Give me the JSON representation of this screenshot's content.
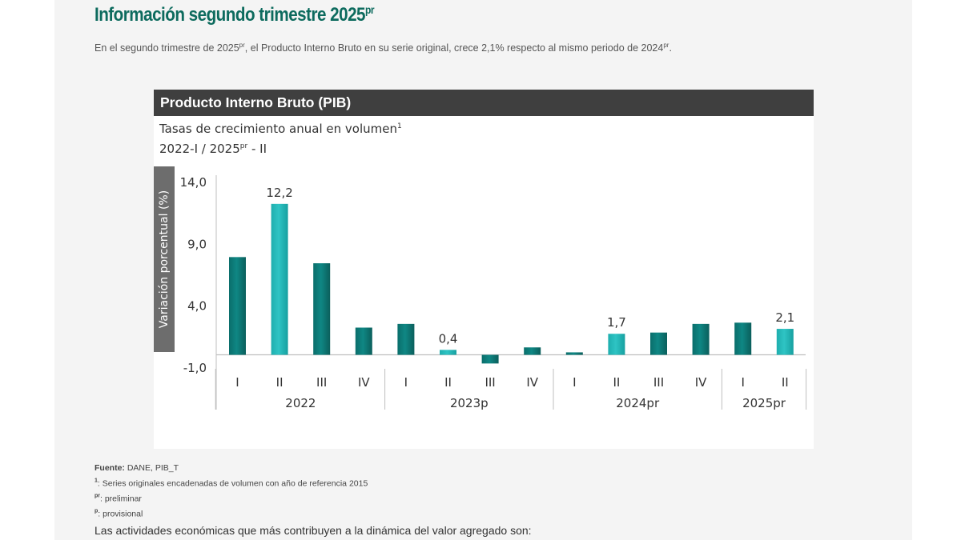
{
  "page": {
    "title": "Información segundo trimestre 2025",
    "title_sup": "pr",
    "intro": {
      "part1": "En el segundo trimestre de 2025",
      "sup1": "pr",
      "part2": ", el Producto Interno Bruto en su serie original, crece 2,1% respecto al mismo periodo de 2024",
      "sup2": "pr",
      "part3": "."
    },
    "bottom_text": "Las actividades económicas que más contribuyen a la dinámica del valor agregado son:"
  },
  "footnotes": {
    "source_label": "Fuente:",
    "source_value": " DANE, PIB_T",
    "note1_mark": "1",
    "note1_text": ": Series originales encadenadas de volumen con año de referencia 2015",
    "note2_mark": "pr",
    "note2_text": ": preliminar",
    "note3_mark": "p",
    "note3_text": ": provisional"
  },
  "colors": {
    "bar_dark": "#0f8784",
    "bar_light": "#2ec4c4",
    "header_bg": "#3f3f3f",
    "title_green": "#0d6b5e"
  },
  "chart_data": {
    "type": "bar",
    "header": "Producto Interno Bruto (PIB)",
    "subtitle_line1": "Tasas de crecimiento anual en volumen",
    "subtitle_line1_sup": "1",
    "subtitle_line2_a": "2022-I / 2025",
    "subtitle_line2_sup": "pr",
    "subtitle_line2_b": " - II",
    "ylabel": "Variación porcentual (%)",
    "ylim": [
      -1.0,
      14.0
    ],
    "yticks": [
      "14,0",
      "9,0",
      "4,0",
      "-1,0"
    ],
    "ytick_values": [
      14.0,
      9.0,
      4.0,
      -1.0
    ],
    "categories": [
      "I",
      "II",
      "III",
      "IV",
      "I",
      "II",
      "III",
      "IV",
      "I",
      "II",
      "III",
      "IV",
      "I",
      "II"
    ],
    "values": [
      7.9,
      12.2,
      7.4,
      2.2,
      2.5,
      0.4,
      -0.7,
      0.6,
      0.2,
      1.7,
      1.8,
      2.5,
      2.6,
      2.1
    ],
    "highlight": [
      false,
      true,
      false,
      false,
      false,
      true,
      false,
      false,
      false,
      true,
      false,
      false,
      false,
      true
    ],
    "data_labels": [
      "",
      "12,2",
      "",
      "",
      "",
      "0,4",
      "",
      "",
      "",
      "1,7",
      "",
      "",
      "",
      "2,1"
    ],
    "groups": [
      {
        "label": "2022",
        "count": 4
      },
      {
        "label": "2023p",
        "count": 4
      },
      {
        "label": "2024pr",
        "count": 4
      },
      {
        "label": "2025pr",
        "count": 2
      }
    ]
  }
}
